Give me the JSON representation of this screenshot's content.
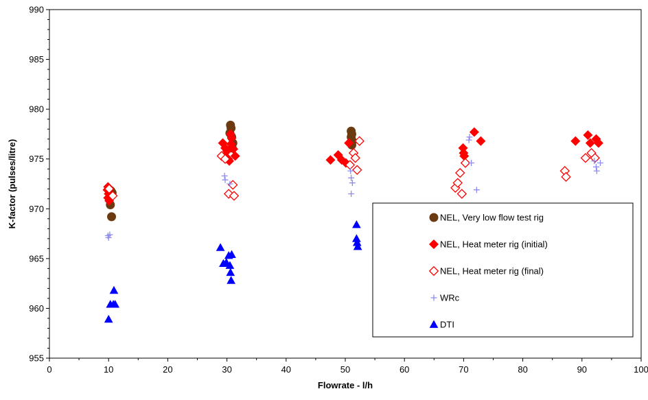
{
  "chart_data": {
    "type": "scatter",
    "title": "",
    "xlabel": "Flowrate - l/h",
    "ylabel": "K-factor (pulses/litre)",
    "xlim": [
      0,
      100
    ],
    "ylim": [
      955,
      990
    ],
    "x_ticks": [
      "0",
      "10",
      "20",
      "30",
      "40",
      "50",
      "60",
      "70",
      "80",
      "90",
      "100"
    ],
    "y_ticks": [
      "955",
      "960",
      "965",
      "970",
      "975",
      "980",
      "985",
      "990"
    ],
    "grid": false,
    "legend_position": "lower-right",
    "series": [
      {
        "name": "NEL, Very low flow test rig",
        "marker": "circle",
        "color": "#6B3A10",
        "points": [
          [
            10.4,
            971.8
          ],
          [
            10.6,
            971.6
          ],
          [
            10.3,
            970.4
          ],
          [
            10.5,
            969.2
          ],
          [
            30.6,
            978.4
          ],
          [
            30.7,
            978.1
          ],
          [
            30.5,
            977.6
          ],
          [
            30.8,
            977.2
          ],
          [
            31.0,
            976.6
          ],
          [
            30.9,
            976.1
          ],
          [
            51.0,
            977.8
          ],
          [
            51.1,
            977.5
          ],
          [
            51.0,
            977.2
          ],
          [
            51.2,
            976.8
          ],
          [
            51.1,
            976.4
          ]
        ]
      },
      {
        "name": "NEL, Heat meter rig (initial)",
        "marker": "diamond",
        "color": "#FF0000",
        "points": [
          [
            9.9,
            972.2
          ],
          [
            9.8,
            971.9
          ],
          [
            10.0,
            971.5
          ],
          [
            9.9,
            971.1
          ],
          [
            10.1,
            970.8
          ],
          [
            29.3,
            976.6
          ],
          [
            29.7,
            976.1
          ],
          [
            30.0,
            975.8
          ],
          [
            29.6,
            975.3
          ],
          [
            30.2,
            975.0
          ],
          [
            30.4,
            974.8
          ],
          [
            30.6,
            977.5
          ],
          [
            30.8,
            977.1
          ],
          [
            31.1,
            976.0
          ],
          [
            31.4,
            975.3
          ],
          [
            30.7,
            976.5
          ],
          [
            47.5,
            974.9
          ],
          [
            48.8,
            975.4
          ],
          [
            49.4,
            974.9
          ],
          [
            50.1,
            974.6
          ],
          [
            50.6,
            976.6
          ],
          [
            69.9,
            976.1
          ],
          [
            70.0,
            975.6
          ],
          [
            70.1,
            975.3
          ],
          [
            71.8,
            977.7
          ],
          [
            72.9,
            976.8
          ],
          [
            88.9,
            976.8
          ],
          [
            91.0,
            977.4
          ],
          [
            91.4,
            976.6
          ],
          [
            92.4,
            977.0
          ],
          [
            92.8,
            976.6
          ]
        ]
      },
      {
        "name": "NEL, Heat meter rig (final)",
        "marker": "diamond-open",
        "color": "#FF0000",
        "points": [
          [
            10.1,
            972.0
          ],
          [
            10.7,
            971.3
          ],
          [
            29.1,
            975.3
          ],
          [
            29.7,
            975.0
          ],
          [
            30.3,
            971.5
          ],
          [
            31.0,
            972.4
          ],
          [
            31.2,
            971.3
          ],
          [
            50.8,
            974.4
          ],
          [
            51.4,
            975.6
          ],
          [
            51.7,
            975.1
          ],
          [
            52.0,
            973.9
          ],
          [
            52.4,
            976.8
          ],
          [
            68.6,
            972.1
          ],
          [
            69.0,
            972.6
          ],
          [
            69.4,
            973.6
          ],
          [
            69.7,
            971.5
          ],
          [
            70.3,
            974.6
          ],
          [
            87.1,
            973.8
          ],
          [
            87.3,
            973.2
          ],
          [
            90.6,
            975.1
          ],
          [
            91.6,
            975.6
          ],
          [
            92.2,
            975.1
          ]
        ]
      },
      {
        "name": "WRc",
        "marker": "plus",
        "color": "#8C8CF0",
        "points": [
          [
            9.9,
            967.3
          ],
          [
            10.0,
            967.1
          ],
          [
            10.2,
            967.4
          ],
          [
            29.6,
            973.3
          ],
          [
            29.7,
            972.9
          ],
          [
            30.5,
            972.5
          ],
          [
            50.9,
            973.8
          ],
          [
            51.0,
            973.1
          ],
          [
            51.2,
            972.6
          ],
          [
            51.0,
            971.5
          ],
          [
            70.9,
            976.9
          ],
          [
            71.0,
            977.2
          ],
          [
            71.3,
            974.6
          ],
          [
            72.2,
            971.9
          ],
          [
            92.1,
            974.8
          ],
          [
            92.4,
            974.2
          ],
          [
            92.5,
            973.8
          ],
          [
            93.1,
            974.6
          ]
        ]
      },
      {
        "name": "DTI",
        "marker": "triangle",
        "color": "#0000FF",
        "points": [
          [
            10.0,
            958.9
          ],
          [
            10.3,
            960.4
          ],
          [
            10.8,
            960.4
          ],
          [
            11.1,
            960.4
          ],
          [
            10.9,
            961.8
          ],
          [
            28.9,
            966.1
          ],
          [
            29.4,
            964.5
          ],
          [
            29.9,
            964.6
          ],
          [
            30.3,
            965.3
          ],
          [
            30.5,
            964.3
          ],
          [
            30.6,
            963.6
          ],
          [
            30.7,
            962.8
          ],
          [
            30.8,
            965.4
          ],
          [
            51.9,
            968.4
          ],
          [
            51.9,
            967.0
          ],
          [
            52.0,
            966.6
          ],
          [
            52.1,
            966.2
          ]
        ]
      }
    ]
  }
}
